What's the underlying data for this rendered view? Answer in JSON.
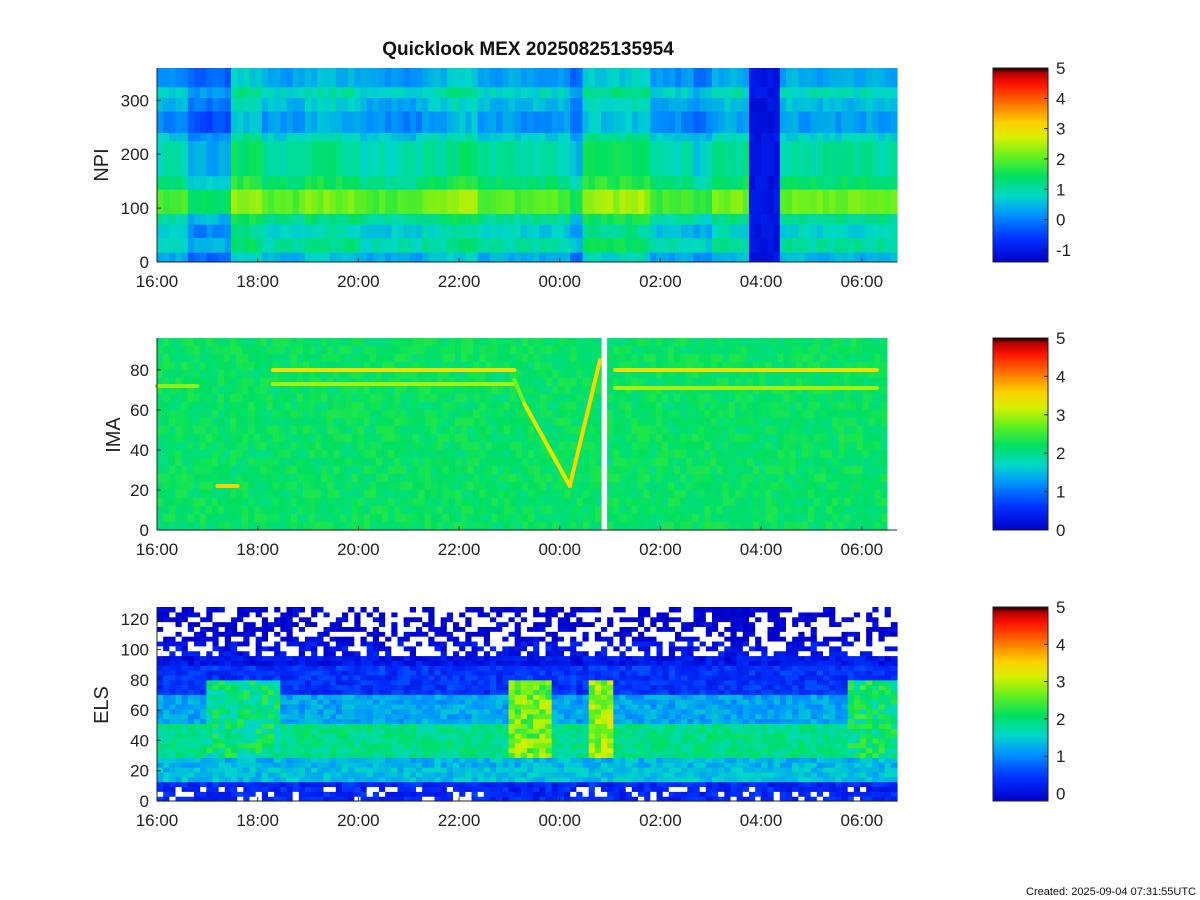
{
  "figure_title": "Quicklook MEX 20250825135954",
  "footer": "Created: 2025-09-04 07:31:55UTC",
  "chart_data": [
    {
      "type": "heatmap",
      "ylabel": "NPI",
      "xlabel": "",
      "x_range_hours": [
        16.0,
        30.7
      ],
      "ylim": [
        0,
        360
      ],
      "y_ticks": [
        "0",
        "100",
        "200",
        "300"
      ],
      "y_tick_values": [
        0,
        100,
        200,
        300
      ],
      "x_ticks": [
        "16:00",
        "18:00",
        "20:00",
        "22:00",
        "00:00",
        "02:00",
        "04:00",
        "06:00"
      ],
      "x_tick_values": [
        16,
        18,
        20,
        22,
        24,
        26,
        28,
        30
      ],
      "colorbar": {
        "range": [
          -1.4,
          5
        ],
        "ticks": [
          "-1",
          "0",
          "1",
          "2",
          "3",
          "4",
          "5"
        ],
        "tick_values": [
          -1,
          0,
          1,
          2,
          3,
          4,
          5
        ]
      },
      "bands": [
        {
          "y": [
            0,
            18
          ],
          "value": 0.3
        },
        {
          "y": [
            18,
            45
          ],
          "value": 0.9
        },
        {
          "y": [
            45,
            70
          ],
          "value": 0.6
        },
        {
          "y": [
            70,
            90
          ],
          "value": 1.0
        },
        {
          "y": [
            90,
            135
          ],
          "value": 1.9
        },
        {
          "y": [
            135,
            160
          ],
          "value": 1.2
        },
        {
          "y": [
            160,
            225
          ],
          "value": 0.9
        },
        {
          "y": [
            225,
            240
          ],
          "value": 0.6
        },
        {
          "y": [
            240,
            280
          ],
          "value": 0.1
        },
        {
          "y": [
            280,
            305
          ],
          "value": 0.4
        },
        {
          "y": [
            305,
            325
          ],
          "value": 0.7
        },
        {
          "y": [
            325,
            360
          ],
          "value": 0.2
        }
      ],
      "time_segments": [
        {
          "x": [
            16.0,
            16.6
          ],
          "offset": 0.0
        },
        {
          "x": [
            16.6,
            17.5
          ],
          "offset": -0.5
        },
        {
          "x": [
            17.5,
            18.1
          ],
          "offset": 0.5
        },
        {
          "x": [
            18.1,
            18.9
          ],
          "offset": 0.1
        },
        {
          "x": [
            18.9,
            20.1
          ],
          "offset": 0.3
        },
        {
          "x": [
            20.1,
            21.3
          ],
          "offset": 0.0
        },
        {
          "x": [
            21.3,
            21.7
          ],
          "offset": 0.2
        },
        {
          "x": [
            21.7,
            22.4
          ],
          "offset": 0.4
        },
        {
          "x": [
            22.4,
            24.2
          ],
          "offset": 0.1
        },
        {
          "x": [
            24.2,
            24.5
          ],
          "offset": -0.4
        },
        {
          "x": [
            24.5,
            25.8
          ],
          "offset": 0.5
        },
        {
          "x": [
            25.8,
            26.6
          ],
          "offset": 0.0
        },
        {
          "x": [
            26.6,
            27.0
          ],
          "offset": -0.2
        },
        {
          "x": [
            27.0,
            27.8
          ],
          "offset": 0.2
        },
        {
          "x": [
            27.8,
            28.4
          ],
          "offset": -1.3
        },
        {
          "x": [
            28.4,
            30.7
          ],
          "offset": 0.15
        }
      ]
    },
    {
      "type": "heatmap",
      "ylabel": "IMA",
      "xlabel": "",
      "x_range_hours": [
        16.0,
        30.5
      ],
      "ylim": [
        0,
        96
      ],
      "y_ticks": [
        "0",
        "20",
        "40",
        "60",
        "80"
      ],
      "y_tick_values": [
        0,
        20,
        40,
        60,
        80
      ],
      "x_ticks": [
        "16:00",
        "18:00",
        "20:00",
        "22:00",
        "00:00",
        "02:00",
        "04:00",
        "06:00"
      ],
      "x_tick_values": [
        16,
        18,
        20,
        22,
        24,
        26,
        28,
        30
      ],
      "colorbar": {
        "range": [
          0,
          5
        ],
        "ticks": [
          "0",
          "1",
          "2",
          "3",
          "4",
          "5"
        ],
        "tick_values": [
          0,
          1,
          2,
          3,
          4,
          5
        ]
      },
      "background_value": 2.2,
      "gap_hours": [
        24.82,
        24.95
      ],
      "lines": [
        {
          "x": [
            16.0,
            16.8
          ],
          "y": [
            72,
            72
          ],
          "value": 2.9
        },
        {
          "x": [
            17.2,
            17.6
          ],
          "y": [
            22,
            22
          ],
          "value": 3.6
        },
        {
          "x": [
            18.3,
            23.1
          ],
          "y": [
            80,
            80
          ],
          "value": 3.4
        },
        {
          "x": [
            18.3,
            23.1
          ],
          "y": [
            73,
            73
          ],
          "value": 3.0
        },
        {
          "x": [
            23.1,
            23.3
          ],
          "y": [
            75,
            63
          ],
          "value": 2.8
        },
        {
          "x": [
            23.3,
            24.2
          ],
          "y": [
            63,
            22
          ],
          "value": 3.3
        },
        {
          "x": [
            24.2,
            24.8
          ],
          "y": [
            22,
            85
          ],
          "value": 3.5
        },
        {
          "x": [
            25.1,
            30.3
          ],
          "y": [
            80,
            80
          ],
          "value": 3.4
        },
        {
          "x": [
            25.1,
            30.3
          ],
          "y": [
            71,
            71
          ],
          "value": 3.0
        }
      ]
    },
    {
      "type": "heatmap",
      "ylabel": "ELS",
      "xlabel": "",
      "x_range_hours": [
        16.0,
        30.7
      ],
      "ylim": [
        0,
        128
      ],
      "y_ticks": [
        "0",
        "20",
        "40",
        "60",
        "80",
        "100",
        "120"
      ],
      "y_tick_values": [
        0,
        20,
        40,
        60,
        80,
        100,
        120
      ],
      "x_ticks": [
        "16:00",
        "18:00",
        "20:00",
        "22:00",
        "00:00",
        "02:00",
        "04:00",
        "06:00"
      ],
      "x_tick_values": [
        16,
        18,
        20,
        22,
        24,
        26,
        28,
        30
      ],
      "colorbar": {
        "range": [
          -0.2,
          5
        ],
        "ticks": [
          "0",
          "1",
          "2",
          "3",
          "4",
          "5"
        ],
        "tick_values": [
          0,
          1,
          2,
          3,
          4,
          5
        ]
      },
      "bands": [
        {
          "y": [
            0,
            12
          ],
          "value": 0.3
        },
        {
          "y": [
            12,
            22
          ],
          "value": 1.4
        },
        {
          "y": [
            22,
            30
          ],
          "value": 1.3
        },
        {
          "y": [
            30,
            50
          ],
          "value": 1.9
        },
        {
          "y": [
            50,
            72
          ],
          "value": 1.2
        },
        {
          "y": [
            72,
            90
          ],
          "value": 0.4
        },
        {
          "y": [
            90,
            105
          ],
          "value": 0.1
        },
        {
          "y": [
            105,
            128
          ],
          "value": -0.2
        }
      ],
      "events": [
        {
          "x": [
            17.0,
            18.4
          ],
          "value": 2.3
        },
        {
          "x": [
            23.0,
            23.9
          ],
          "value": 3.0
        },
        {
          "x": [
            24.6,
            25.1
          ],
          "value": 3.2
        },
        {
          "x": [
            29.7,
            30.7
          ],
          "value": 2.4
        }
      ]
    }
  ]
}
